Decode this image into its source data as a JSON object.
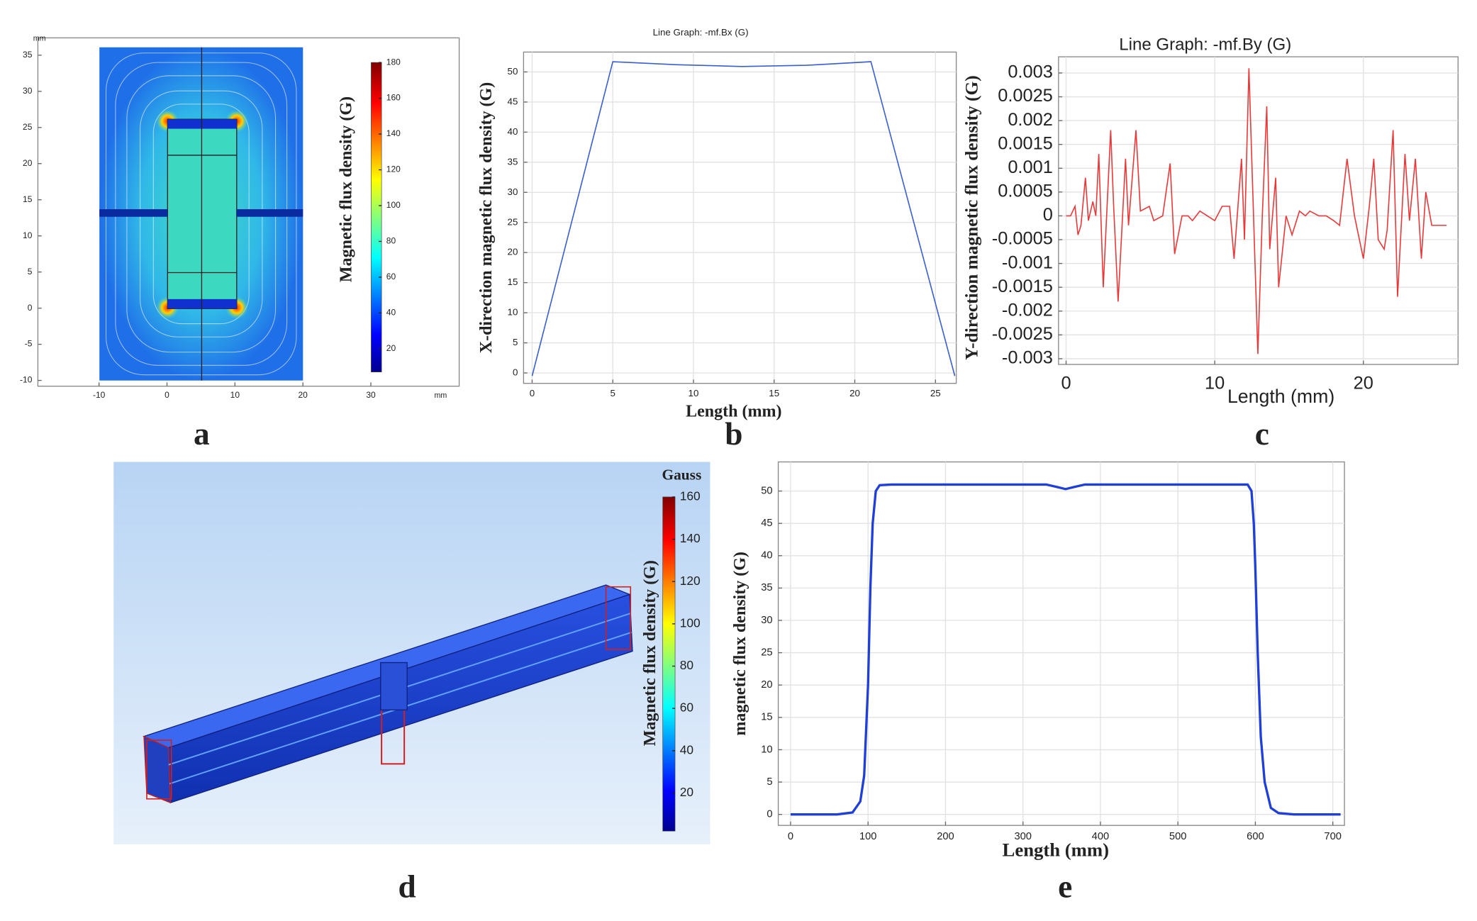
{
  "chart_data": [
    {
      "type": "field",
      "panel_label": "a",
      "xlabel": "mm",
      "ylabel": "mm",
      "xlim": [
        -19,
        43
      ],
      "xticks": [
        -10,
        0,
        10,
        20,
        30
      ],
      "ylim": [
        -10.8,
        37.4
      ],
      "yticks": [
        -10,
        -5,
        0,
        5,
        10,
        15,
        20,
        25,
        30,
        35
      ],
      "colorbar_label": "Magnetic flux density (G)",
      "clim": [
        7,
        180
      ],
      "cticks": [
        20,
        40,
        60,
        80,
        100,
        120,
        140,
        160,
        180
      ],
      "grid": false
    },
    {
      "type": "line",
      "panel_label": "b",
      "title": "Line Graph: -mf.Bx (G)",
      "xlabel": "Length (mm)",
      "ylabel": "X-direction magnetic flux density (G)",
      "x": [
        0,
        5,
        9,
        13,
        17,
        21,
        26.2
      ],
      "values": [
        -0.5,
        51.7,
        51.2,
        50.9,
        51.1,
        51.7,
        -0.5
      ],
      "color": "#3a5fcd",
      "xlim": [
        -0.53,
        26.29
      ],
      "xticks": [
        0,
        5,
        10,
        15,
        20,
        25
      ],
      "ylim": [
        -1.73,
        53.3
      ],
      "yticks": [
        0,
        5,
        10,
        15,
        20,
        25,
        30,
        35,
        40,
        45,
        50
      ],
      "grid": true
    },
    {
      "type": "line",
      "panel_label": "c",
      "title": "Line Graph: -mf.By (G)",
      "xlabel": "Length (mm)",
      "ylabel": "Y-direction magnetic flux density (G)",
      "x": [
        0,
        0.3,
        0.6,
        0.8,
        1,
        1.3,
        1.5,
        1.8,
        2.0,
        2.2,
        2.5,
        3.0,
        3.2,
        3.5,
        4.0,
        4.2,
        4.7,
        5.0,
        5.6,
        5.9,
        6.5,
        7.0,
        7.3,
        7.8,
        8.2,
        8.5,
        9,
        9.5,
        10,
        10.5,
        11,
        11.3,
        11.8,
        12.0,
        12.3,
        12.9,
        13.2,
        13.5,
        13.7,
        14.1,
        14.3,
        14.8,
        15.2,
        15.7,
        16.1,
        16.4,
        17,
        17.5,
        18,
        18.4,
        18.9,
        19.4,
        20.0,
        20.4,
        20.7,
        21.0,
        21.4,
        21.6,
        22.0,
        22.3,
        22.8,
        23.1,
        23.5,
        23.9,
        24.2,
        24.6,
        25.6
      ],
      "values": [
        0,
        0,
        0.0002,
        -0.0004,
        -0.0002,
        0.0008,
        -0.0001,
        0.0003,
        0,
        0.0013,
        -0.0015,
        0.0018,
        0.0002,
        -0.0018,
        0.0012,
        -0.0002,
        0.0018,
        0.0001,
        0.0002,
        -0.0001,
        0,
        0.0011,
        -0.0008,
        0,
        0,
        -0.0001,
        0.0001,
        0,
        -0.0001,
        0.0002,
        0.0002,
        -0.0009,
        0.0012,
        -0.0005,
        0.0031,
        -0.0029,
        0,
        0.0023,
        -0.0007,
        0.0008,
        -0.0015,
        0,
        -0.0004,
        0.0001,
        0,
        0.0001,
        0,
        0,
        -0.0001,
        -0.0002,
        0.0012,
        0,
        -0.0009,
        0.0002,
        0.0012,
        -0.0005,
        -0.0007,
        -0.0003,
        0.0018,
        -0.0017,
        0.0013,
        -0.0001,
        0.0012,
        -0.0009,
        0.0005,
        -0.0002,
        -0.0002
      ],
      "color": "#e8393a",
      "xlim": [
        -0.51,
        26.37
      ],
      "xticks": [
        0,
        10,
        20
      ],
      "ylim": [
        -0.00312,
        0.00334
      ],
      "yticks": [
        0.003,
        0.0025,
        0.002,
        0.0015,
        0.001,
        0.0005,
        0,
        -0.0005,
        -0.001,
        -0.0015,
        -0.002,
        -0.0025,
        -0.003
      ],
      "grid": true
    },
    {
      "type": "field3d",
      "panel_label": "d",
      "colorbar_title": "Gauss",
      "colorbar_label": "Magnetic flux density (G)",
      "clim": [
        2,
        160
      ],
      "cticks": [
        20,
        40,
        60,
        80,
        100,
        120,
        140,
        160
      ]
    },
    {
      "type": "line",
      "panel_label": "e",
      "xlabel": "Length (mm)",
      "ylabel": "magnetic flux density (G)",
      "x": [
        0,
        60,
        80,
        90,
        95,
        100,
        103,
        106,
        110,
        115,
        130,
        300,
        330,
        345,
        355,
        365,
        380,
        590,
        595,
        598,
        600,
        603,
        607,
        612,
        620,
        630,
        650,
        710
      ],
      "values": [
        0,
        0,
        0.3,
        2,
        6,
        20,
        35,
        45,
        50,
        50.9,
        51,
        51,
        51,
        50.6,
        50.3,
        50.6,
        51,
        51,
        50,
        45,
        38,
        25,
        12,
        5,
        1,
        0.2,
        0,
        0
      ],
      "color": "#1f3fd6",
      "xlim": [
        -15.9,
        715
      ],
      "xticks": [
        0,
        100,
        200,
        300,
        400,
        500,
        600,
        700
      ],
      "ylim": [
        -1.7,
        54.5
      ],
      "yticks": [
        0,
        5,
        10,
        15,
        20,
        25,
        30,
        35,
        40,
        45,
        50
      ],
      "grid": true
    }
  ]
}
